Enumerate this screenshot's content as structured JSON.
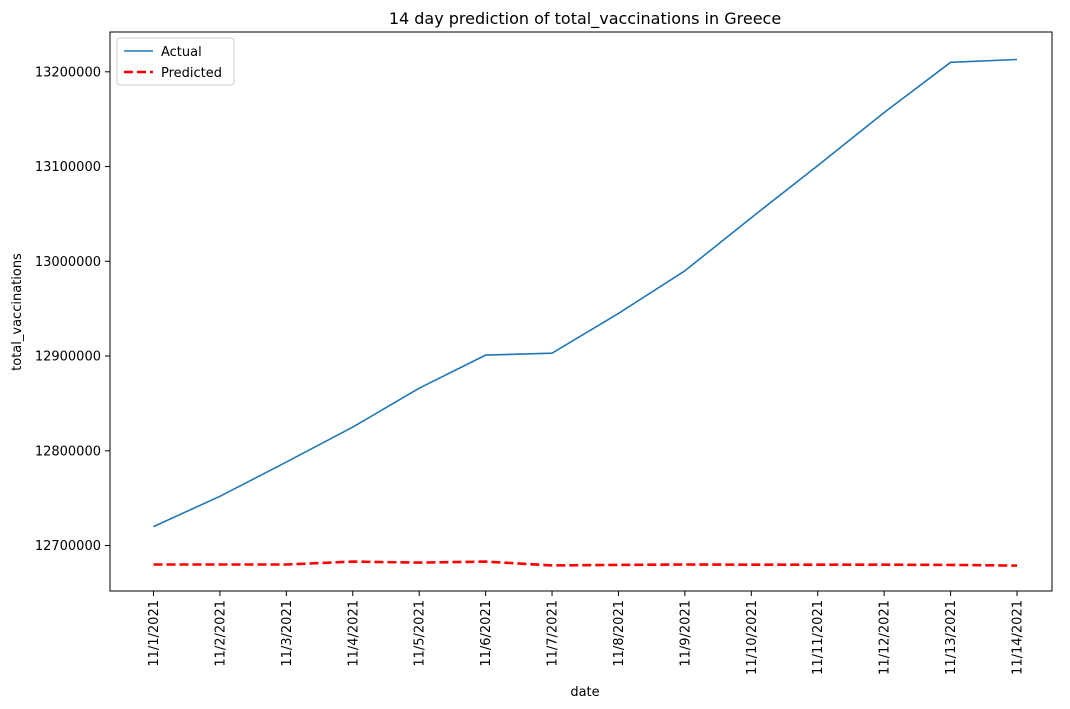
{
  "chart_data": {
    "type": "line",
    "title": "14 day prediction of total_vaccinations in Greece",
    "xlabel": "date",
    "ylabel": "total_vaccinations",
    "categories": [
      "11/1/2021",
      "11/2/2021",
      "11/3/2021",
      "11/4/2021",
      "11/5/2021",
      "11/6/2021",
      "11/7/2021",
      "11/8/2021",
      "11/9/2021",
      "11/10/2021",
      "11/11/2021",
      "11/12/2021",
      "11/13/2021",
      "11/14/2021"
    ],
    "series": [
      {
        "name": "Actual",
        "color": "#1f77b4",
        "style": "solid",
        "values": [
          12720000,
          12752000,
          12788000,
          12825000,
          12866000,
          12901000,
          12903000,
          12945000,
          12990000,
          13046000,
          13101000,
          13157000,
          13210000,
          13213000
        ]
      },
      {
        "name": "Predicted",
        "color": "#ff0000",
        "style": "dashed",
        "values": [
          12680000,
          12680000,
          12680000,
          12683000,
          12682000,
          12683000,
          12679000,
          12679500,
          12680000,
          12679800,
          12679800,
          12679800,
          12679600,
          12678800
        ]
      }
    ],
    "yticks": [
      12700000,
      12800000,
      12900000,
      13000000,
      13100000,
      13200000
    ],
    "ylim": [
      12652000,
      13242000
    ],
    "grid": false,
    "legend_position": "top-left"
  }
}
